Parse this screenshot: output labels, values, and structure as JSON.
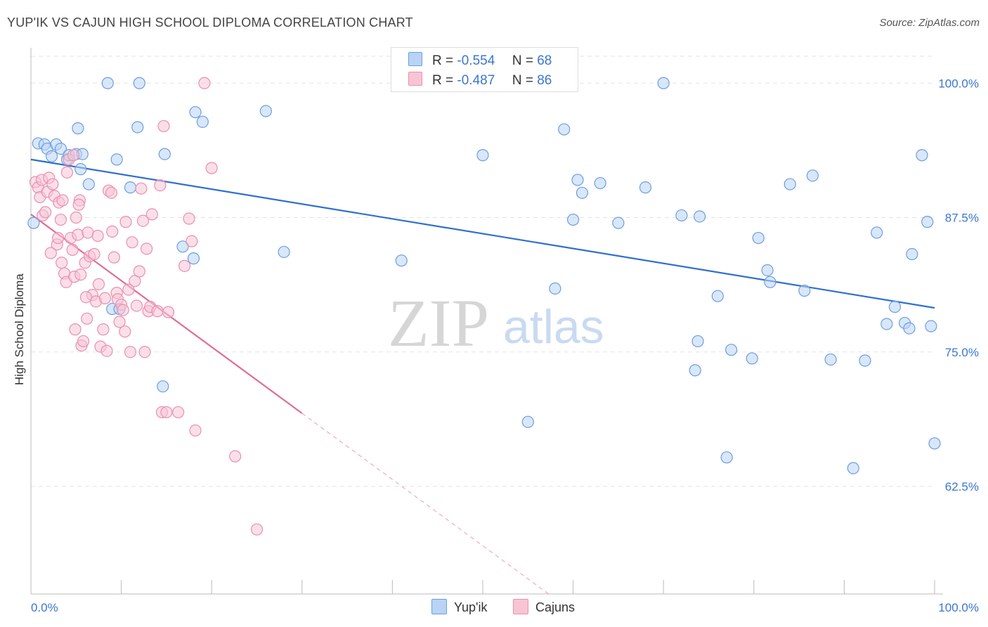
{
  "header": {
    "title": "YUP'IK VS CAJUN HIGH SCHOOL DIPLOMA CORRELATION CHART",
    "source": "Source: ZipAtlas.com"
  },
  "legend": {
    "r_label": "R =",
    "n_label": "N =",
    "series": [
      {
        "r": "-0.554",
        "n": "68",
        "color": "#b9d3f5",
        "stroke": "#6b9ee0"
      },
      {
        "r": "-0.487",
        "n": "86",
        "color": "#f8c5d5",
        "stroke": "#ea8fae"
      }
    ]
  },
  "watermark": {
    "zip": "ZIP",
    "atlas": "atlas"
  },
  "chart_data": {
    "type": "scatter",
    "xlabel": "",
    "ylabel": "High School Diploma",
    "x_ticks": [
      "0.0%",
      "100.0%"
    ],
    "y_ticks": [
      "100.0%",
      "87.5%",
      "75.0%",
      "62.5%"
    ],
    "y_tick_values": [
      100.0,
      87.5,
      75.0,
      62.5
    ],
    "xlim": [
      0,
      100
    ],
    "ylim": [
      52.5,
      102.5
    ],
    "grid": true,
    "series": [
      {
        "name": "Yup'ik",
        "color": "#b9d3f5",
        "stroke": "#6b9ee0",
        "trend": {
          "x0": 0,
          "y0": 92.9,
          "x1": 100,
          "y1": 79.1,
          "color": "#2f6fd0"
        },
        "points": [
          [
            0.3,
            87.0
          ],
          [
            0.8,
            94.4
          ],
          [
            1.5,
            94.3
          ],
          [
            1.8,
            93.9
          ],
          [
            2.3,
            93.2
          ],
          [
            2.8,
            94.3
          ],
          [
            3.3,
            93.9
          ],
          [
            4.0,
            92.9
          ],
          [
            4.2,
            93.3
          ],
          [
            5.0,
            93.4
          ],
          [
            5.2,
            95.8
          ],
          [
            5.5,
            92.0
          ],
          [
            5.7,
            93.4
          ],
          [
            6.4,
            90.6
          ],
          [
            8.5,
            100.0
          ],
          [
            9.0,
            79.0
          ],
          [
            9.5,
            92.9
          ],
          [
            9.8,
            79.0
          ],
          [
            11.0,
            90.3
          ],
          [
            11.8,
            95.9
          ],
          [
            12.0,
            100.0
          ],
          [
            14.8,
            93.4
          ],
          [
            14.6,
            71.8
          ],
          [
            16.8,
            84.8
          ],
          [
            18.0,
            83.7
          ],
          [
            18.2,
            97.3
          ],
          [
            19.0,
            96.4
          ],
          [
            26.0,
            97.4
          ],
          [
            28.0,
            84.3
          ],
          [
            41.0,
            83.5
          ],
          [
            50.0,
            93.3
          ],
          [
            55.0,
            68.5
          ],
          [
            58.0,
            80.9
          ],
          [
            59.0,
            95.7
          ],
          [
            60.0,
            87.3
          ],
          [
            60.5,
            91.0
          ],
          [
            61.0,
            89.8
          ],
          [
            63.0,
            90.7
          ],
          [
            65.0,
            87.0
          ],
          [
            68.0,
            90.3
          ],
          [
            70.0,
            100.0
          ],
          [
            72.0,
            87.7
          ],
          [
            73.5,
            73.3
          ],
          [
            73.8,
            76.0
          ],
          [
            74.0,
            87.6
          ],
          [
            76.0,
            80.2
          ],
          [
            77.0,
            65.2
          ],
          [
            77.5,
            75.2
          ],
          [
            79.8,
            74.4
          ],
          [
            80.5,
            85.6
          ],
          [
            81.5,
            82.6
          ],
          [
            81.8,
            81.5
          ],
          [
            84.0,
            90.6
          ],
          [
            85.6,
            80.7
          ],
          [
            86.5,
            91.4
          ],
          [
            88.5,
            74.3
          ],
          [
            91.0,
            64.2
          ],
          [
            92.3,
            74.2
          ],
          [
            93.6,
            86.1
          ],
          [
            94.7,
            77.6
          ],
          [
            95.6,
            79.2
          ],
          [
            96.7,
            77.7
          ],
          [
            97.2,
            77.2
          ],
          [
            97.5,
            84.1
          ],
          [
            98.6,
            93.3
          ],
          [
            99.2,
            87.1
          ],
          [
            99.6,
            77.4
          ],
          [
            100.0,
            66.5
          ]
        ]
      },
      {
        "name": "Cajuns",
        "color": "#f8c5d5",
        "stroke": "#ea8fae",
        "trend": {
          "x0": 0,
          "y0": 87.8,
          "x1": 30,
          "y1": 69.3,
          "color": "#e06d97",
          "dash_to": {
            "x": 100,
            "y": 26.2
          }
        },
        "points": [
          [
            0.5,
            90.8
          ],
          [
            0.8,
            90.3
          ],
          [
            1.0,
            89.4
          ],
          [
            1.2,
            91.0
          ],
          [
            1.3,
            87.7
          ],
          [
            1.6,
            88.0
          ],
          [
            1.8,
            89.9
          ],
          [
            2.0,
            91.2
          ],
          [
            2.2,
            84.2
          ],
          [
            2.4,
            90.6
          ],
          [
            2.6,
            89.5
          ],
          [
            2.9,
            85.0
          ],
          [
            3.0,
            85.6
          ],
          [
            3.1,
            88.9
          ],
          [
            3.3,
            87.3
          ],
          [
            3.4,
            83.3
          ],
          [
            3.5,
            89.1
          ],
          [
            3.7,
            82.3
          ],
          [
            3.9,
            81.5
          ],
          [
            4.0,
            91.7
          ],
          [
            4.2,
            92.9
          ],
          [
            4.4,
            85.6
          ],
          [
            4.6,
            84.5
          ],
          [
            4.8,
            82.0
          ],
          [
            4.9,
            77.1
          ],
          [
            5.0,
            87.5
          ],
          [
            5.2,
            85.9
          ],
          [
            5.4,
            89.1
          ],
          [
            5.5,
            82.2
          ],
          [
            5.6,
            75.6
          ],
          [
            5.8,
            76.0
          ],
          [
            6.0,
            83.3
          ],
          [
            6.2,
            78.1
          ],
          [
            6.3,
            86.1
          ],
          [
            6.5,
            83.9
          ],
          [
            6.8,
            80.3
          ],
          [
            7.0,
            84.1
          ],
          [
            7.2,
            79.7
          ],
          [
            7.4,
            85.8
          ],
          [
            7.5,
            81.3
          ],
          [
            7.7,
            75.5
          ],
          [
            8.0,
            77.1
          ],
          [
            8.2,
            80.0
          ],
          [
            8.4,
            75.1
          ],
          [
            8.6,
            90.0
          ],
          [
            8.9,
            89.8
          ],
          [
            9.0,
            86.2
          ],
          [
            9.2,
            83.8
          ],
          [
            9.5,
            80.5
          ],
          [
            9.6,
            79.9
          ],
          [
            9.8,
            77.8
          ],
          [
            10.0,
            79.4
          ],
          [
            10.2,
            78.9
          ],
          [
            10.4,
            76.9
          ],
          [
            10.5,
            87.1
          ],
          [
            10.8,
            80.8
          ],
          [
            11.0,
            75.0
          ],
          [
            11.2,
            85.2
          ],
          [
            11.5,
            81.6
          ],
          [
            11.7,
            79.3
          ],
          [
            12.0,
            82.5
          ],
          [
            12.2,
            90.2
          ],
          [
            12.4,
            87.2
          ],
          [
            12.6,
            75.0
          ],
          [
            12.8,
            84.6
          ],
          [
            13.0,
            78.8
          ],
          [
            13.2,
            79.2
          ],
          [
            13.4,
            87.8
          ],
          [
            14.0,
            78.8
          ],
          [
            14.3,
            90.5
          ],
          [
            14.5,
            69.4
          ],
          [
            14.7,
            96.0
          ],
          [
            15.0,
            69.4
          ],
          [
            15.2,
            78.7
          ],
          [
            16.3,
            69.4
          ],
          [
            17.0,
            83.0
          ],
          [
            17.5,
            87.4
          ],
          [
            17.8,
            85.3
          ],
          [
            18.2,
            67.7
          ],
          [
            19.2,
            100.0
          ],
          [
            20.0,
            92.1
          ],
          [
            22.6,
            65.3
          ],
          [
            25.0,
            58.5
          ],
          [
            5.3,
            88.7
          ],
          [
            4.7,
            93.3
          ],
          [
            6.1,
            80.1
          ]
        ]
      }
    ]
  },
  "bottom_legend": [
    {
      "label": "Yup'ik",
      "color": "#b9d3f5",
      "stroke": "#6b9ee0"
    },
    {
      "label": "Cajuns",
      "color": "#f8c5d5",
      "stroke": "#ea8fae"
    }
  ]
}
